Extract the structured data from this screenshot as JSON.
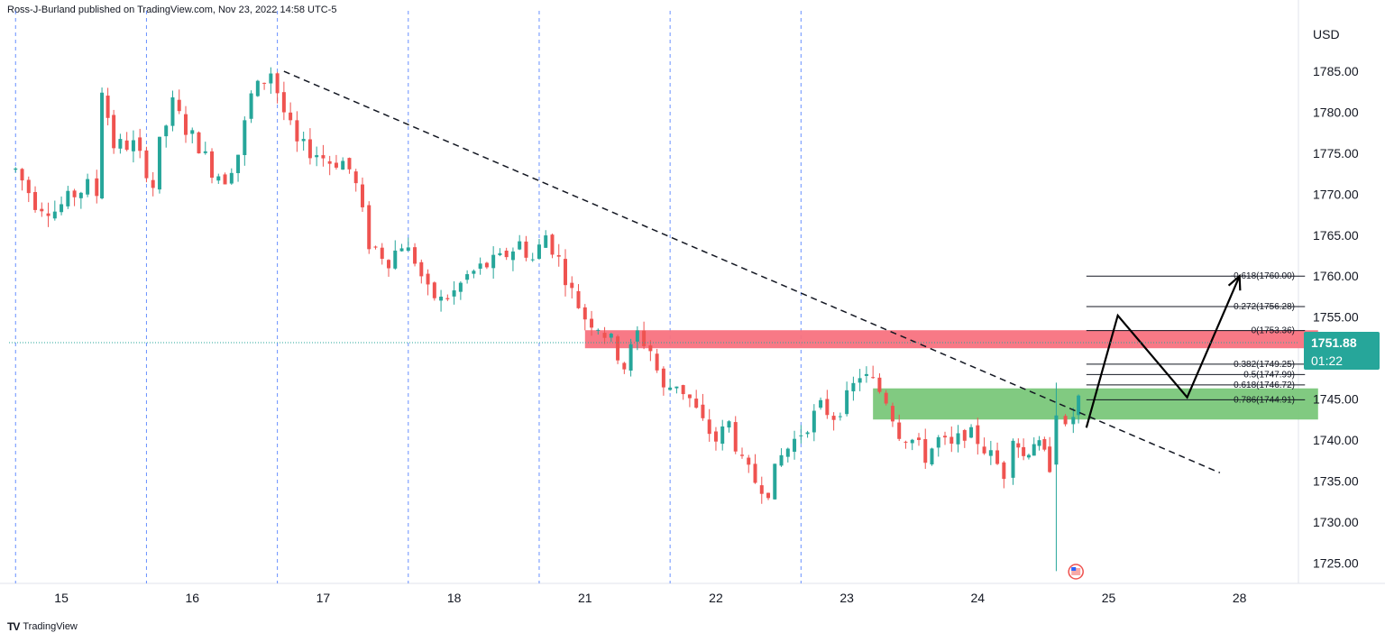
{
  "header": {
    "published": "Ross-J-Burland published on TradingView.com, Nov 23, 2022 14:58 UTC-5"
  },
  "footer": {
    "brand": "TradingView"
  },
  "chart_data": {
    "type": "candlestick",
    "currency": "USD",
    "y_ticks": [
      "1785.00",
      "1780.00",
      "1775.00",
      "1770.00",
      "1765.00",
      "1760.00",
      "1755.00",
      "1750.00",
      "1745.00",
      "1740.00",
      "1735.00",
      "1730.00",
      "1725.00"
    ],
    "y_tick_values": [
      1785,
      1780,
      1775,
      1770,
      1765,
      1760,
      1755,
      1750,
      1745,
      1740,
      1735,
      1730,
      1725
    ],
    "ylim": [
      1722.5,
      1791.5
    ],
    "x_ticks": [
      {
        "label": "15",
        "t": 0.35
      },
      {
        "label": "16",
        "t": 1.35
      },
      {
        "label": "17",
        "t": 2.35
      },
      {
        "label": "18",
        "t": 3.35
      },
      {
        "label": "21",
        "t": 4.35
      },
      {
        "label": "22",
        "t": 5.35
      },
      {
        "label": "23",
        "t": 6.35
      },
      {
        "label": "24",
        "t": 7.35
      },
      {
        "label": "25",
        "t": 8.35
      },
      {
        "label": "28",
        "t": 9.35
      }
    ],
    "xlim": [
      -0.05,
      9.8
    ],
    "session_lines": [
      0.0,
      1.0,
      2.0,
      3.0,
      4.0,
      5.0,
      6.0
    ],
    "last_price": {
      "value": 1751.88,
      "label": "1751.88",
      "countdown": "01:22"
    },
    "close_path": [
      [
        0.0,
        1773
      ],
      [
        0.15,
        1769
      ],
      [
        0.3,
        1768
      ],
      [
        0.45,
        1770
      ],
      [
        0.55,
        1771
      ],
      [
        0.62,
        1770
      ],
      [
        0.66,
        1783
      ],
      [
        0.75,
        1776
      ],
      [
        0.9,
        1776
      ],
      [
        1.0,
        1773
      ],
      [
        1.05,
        1771
      ],
      [
        1.1,
        1776
      ],
      [
        1.2,
        1781
      ],
      [
        1.3,
        1778
      ],
      [
        1.4,
        1776
      ],
      [
        1.5,
        1773
      ],
      [
        1.6,
        1772
      ],
      [
        1.7,
        1775
      ],
      [
        1.8,
        1782
      ],
      [
        1.95,
        1785
      ],
      [
        2.05,
        1780
      ],
      [
        2.15,
        1776
      ],
      [
        2.3,
        1775
      ],
      [
        2.4,
        1774
      ],
      [
        2.5,
        1774
      ],
      [
        2.55,
        1773
      ],
      [
        2.6,
        1771
      ],
      [
        2.7,
        1764
      ],
      [
        2.85,
        1762
      ],
      [
        2.95,
        1764
      ],
      [
        3.05,
        1762
      ],
      [
        3.15,
        1758
      ],
      [
        3.25,
        1757
      ],
      [
        3.35,
        1758
      ],
      [
        3.45,
        1760
      ],
      [
        3.55,
        1761
      ],
      [
        3.7,
        1762
      ],
      [
        3.85,
        1764
      ],
      [
        3.95,
        1762
      ],
      [
        4.05,
        1765
      ],
      [
        4.15,
        1762
      ],
      [
        4.25,
        1758
      ],
      [
        4.35,
        1755
      ],
      [
        4.45,
        1754
      ],
      [
        4.55,
        1752
      ],
      [
        4.65,
        1749
      ],
      [
        4.75,
        1753
      ],
      [
        4.85,
        1751
      ],
      [
        4.95,
        1746
      ],
      [
        5.05,
        1747
      ],
      [
        5.15,
        1745
      ],
      [
        5.25,
        1742
      ],
      [
        5.35,
        1740
      ],
      [
        5.45,
        1742
      ],
      [
        5.55,
        1737
      ],
      [
        5.65,
        1735
      ],
      [
        5.75,
        1734
      ],
      [
        5.85,
        1738
      ],
      [
        5.95,
        1740
      ],
      [
        6.05,
        1742
      ],
      [
        6.15,
        1744
      ],
      [
        6.25,
        1743
      ],
      [
        6.35,
        1745
      ],
      [
        6.45,
        1748
      ],
      [
        6.55,
        1747
      ],
      [
        6.65,
        1745
      ],
      [
        6.75,
        1741
      ],
      [
        6.85,
        1740
      ],
      [
        6.95,
        1738
      ],
      [
        7.05,
        1740
      ],
      [
        7.15,
        1739
      ],
      [
        7.25,
        1741
      ],
      [
        7.35,
        1740
      ],
      [
        7.45,
        1738
      ],
      [
        7.55,
        1736
      ],
      [
        7.62,
        1741
      ],
      [
        7.7,
        1738
      ],
      [
        7.78,
        1740
      ],
      [
        7.86,
        1738
      ],
      [
        7.9,
        1737
      ],
      [
        7.95,
        1743
      ],
      [
        8.02,
        1741
      ],
      [
        8.08,
        1743
      ],
      [
        8.12,
        1745
      ],
      [
        8.18,
        1751.88
      ]
    ],
    "special_candles": [
      {
        "t": 7.95,
        "open": 1737,
        "high": 1747,
        "low": 1724,
        "close": 1743
      },
      {
        "t": 8.18,
        "open": 1745,
        "high": 1753.4,
        "low": 1744,
        "close": 1751.88
      }
    ],
    "trendline": {
      "start": [
        2.05,
        1785
      ],
      "end": [
        9.2,
        1736
      ]
    },
    "resistance_zone": {
      "t_start": 4.35,
      "t_end": 9.95,
      "low": 1751.2,
      "high": 1753.4,
      "color": "#f87280"
    },
    "support_zone": {
      "t_start": 6.55,
      "t_end": 9.95,
      "low": 1742.5,
      "high": 1746.3,
      "color": "#7ac77a"
    },
    "fib_levels": [
      {
        "label": "-0.618(1760.00)",
        "price": 1760.0
      },
      {
        "label": "-0.272(1756.28)",
        "price": 1756.28
      },
      {
        "label": "0(1753.36)",
        "price": 1753.36
      },
      {
        "label": "0.382(1749.25)",
        "price": 1749.25
      },
      {
        "label": "0.5(1747.99)",
        "price": 1747.99
      },
      {
        "label": "0.618(1746.72)",
        "price": 1746.72
      },
      {
        "label": "0.786(1744.91)",
        "price": 1744.91
      }
    ],
    "fib_t_start": 8.18,
    "projection_path": [
      [
        8.18,
        1741.5
      ],
      [
        8.42,
        1755.2
      ],
      [
        8.95,
        1745.2
      ],
      [
        9.35,
        1760.0
      ]
    ],
    "colors": {
      "up": "#26a69a",
      "down": "#ef5350",
      "session": "#2962ff",
      "last": "#26a69a"
    }
  }
}
